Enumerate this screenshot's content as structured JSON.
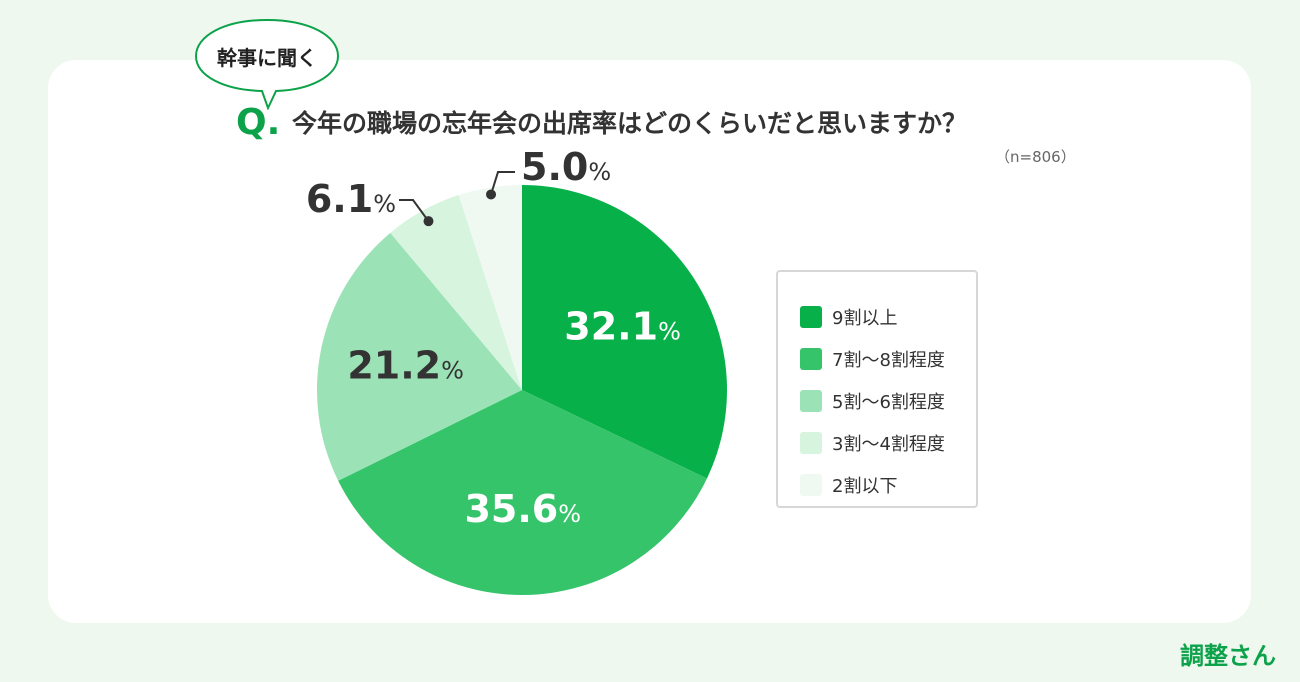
{
  "header": {
    "bubble_text": "幹事に聞く",
    "q_mark": "Q.",
    "question": "今年の職場の忘年会の出席率はどのくらいだと思いますか？",
    "sample_size": "（n=806）"
  },
  "brand": {
    "logo_text": "調整さん"
  },
  "colors": {
    "accent": "#0ba24a",
    "background": "#eff8ef",
    "card": "#ffffff"
  },
  "chart_data": {
    "type": "pie",
    "title": "今年の職場の忘年会の出席率はどのくらいだと思いますか？",
    "categories": [
      "9割以上",
      "7割〜8割程度",
      "5割〜6割程度",
      "3割〜4割程度",
      "2割以下"
    ],
    "values": [
      32.1,
      35.6,
      21.2,
      6.1,
      5.0
    ],
    "value_labels": [
      "32.1",
      "35.6",
      "21.2",
      "6.1",
      "5.0"
    ],
    "unit": "%",
    "colors": [
      "#08b04a",
      "#36c46b",
      "#9be3b6",
      "#d6f4de",
      "#eff9f2"
    ],
    "label_colors": [
      "#ffffff",
      "#ffffff",
      "#333333",
      "#333333",
      "#333333"
    ],
    "start_angle": "12 o'clock",
    "direction": "clockwise",
    "legend_position": "right"
  }
}
